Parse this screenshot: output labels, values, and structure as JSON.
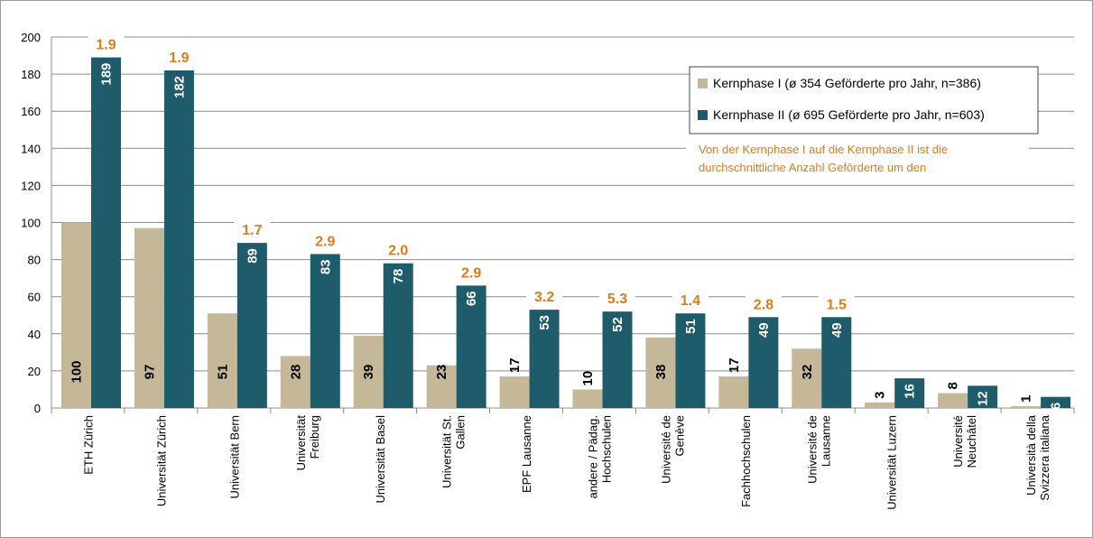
{
  "chart_data": {
    "type": "bar",
    "categories": [
      "ETH Zürich",
      "Universität Zürich",
      "Universität Bern",
      "Universität\nFreiburg",
      "Universität Basel",
      "Universität St.\nGallen",
      "EPF Lausanne",
      "andere / Pädag.\nHochschulen",
      "Université de\nGenève",
      "Fachhochschulen",
      "Université de\nLausanne",
      "Universität Luzern",
      "Université\nNeuchâtel",
      "Università della\nSvizzera italiana"
    ],
    "series": [
      {
        "name": "Kernphase I (ø 354 Geförderte pro Jahr, n=386)",
        "color": "#c4b899",
        "values": [
          100,
          97,
          51,
          28,
          39,
          23,
          17,
          10,
          38,
          17,
          32,
          3,
          8,
          1
        ]
      },
      {
        "name": "Kernphase II (ø 695 Geförderte pro Jahr, n=603)",
        "color": "#1f5c6b",
        "values": [
          189,
          182,
          89,
          83,
          78,
          66,
          53,
          52,
          51,
          49,
          49,
          16,
          12,
          6
        ]
      }
    ],
    "ratios": {
      "values": [
        1.9,
        1.9,
        1.7,
        2.9,
        2,
        2.9,
        3.2,
        5.3,
        1.4,
        2.8,
        1.5,
        null,
        null,
        null
      ],
      "value_labels": [
        "1.9",
        "1.9",
        "1.7",
        "2.9",
        "2.0",
        "2.9",
        "3.2",
        "5.3",
        "1.4",
        "2.8",
        "1.5",
        null,
        null,
        null
      ]
    },
    "annotation": [
      "Von der Kernphase I auf die Kernphase II ist die",
      "durchschnittliche Anzahl Geförderte um den"
    ],
    "ylim": [
      0,
      200
    ],
    "yticks": [
      0,
      20,
      40,
      60,
      80,
      100,
      120,
      140,
      160,
      180,
      200
    ],
    "grid": true,
    "legend": "top-right"
  }
}
